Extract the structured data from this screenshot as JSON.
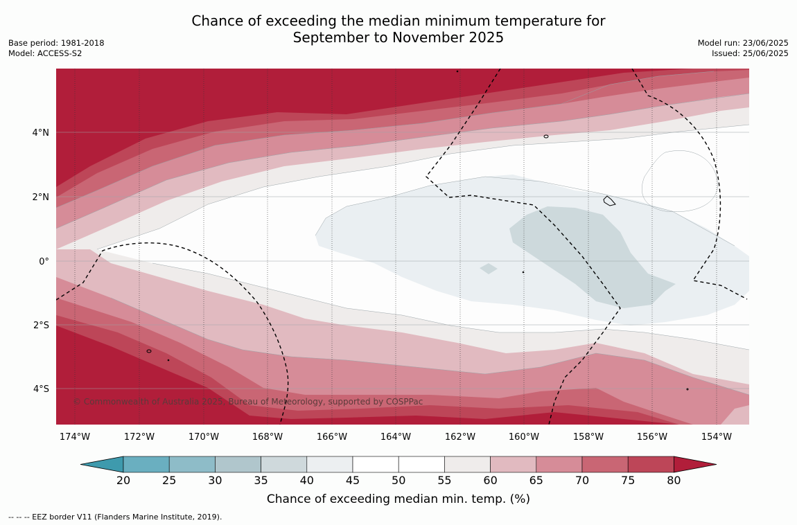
{
  "title_line1": "Chance of exceeding the median minimum temperature for",
  "title_line2": "September to November 2025",
  "base_period": "Base period: 1981-2018",
  "model": "Model: ACCESS-S2",
  "model_run": "Model run: 23/06/2025",
  "issued": "Issued: 25/06/2025",
  "copyright": "© Commonwealth of Australia 2025, Bureau of Meteorology, supported by COSPPac",
  "lat_labels": [
    "4°N",
    "2°N",
    "0°",
    "2°S",
    "4°S"
  ],
  "lon_labels": [
    "174°W",
    "172°W",
    "170°W",
    "168°W",
    "166°W",
    "164°W",
    "162°W",
    "160°W",
    "158°W",
    "156°W",
    "154°W"
  ],
  "colorbar": {
    "ticks": [
      "20",
      "25",
      "30",
      "35",
      "40",
      "45",
      "50",
      "55",
      "60",
      "65",
      "70",
      "75",
      "80"
    ],
    "colors": [
      "#3e9aad",
      "#6aafc0",
      "#8ebcc8",
      "#b0c6cc",
      "#cfd9dc",
      "#eceff1",
      "#ffffff",
      "#ffffff",
      "#efeceb",
      "#e1bac0",
      "#d68c98",
      "#c96674",
      "#bd4658",
      "#b11e3a"
    ],
    "label": "Chance of exceeding median min. temp. (%)"
  },
  "footer": "--  --  -- EEZ border V11 (Flanders Marine Institute, 2019)."
}
